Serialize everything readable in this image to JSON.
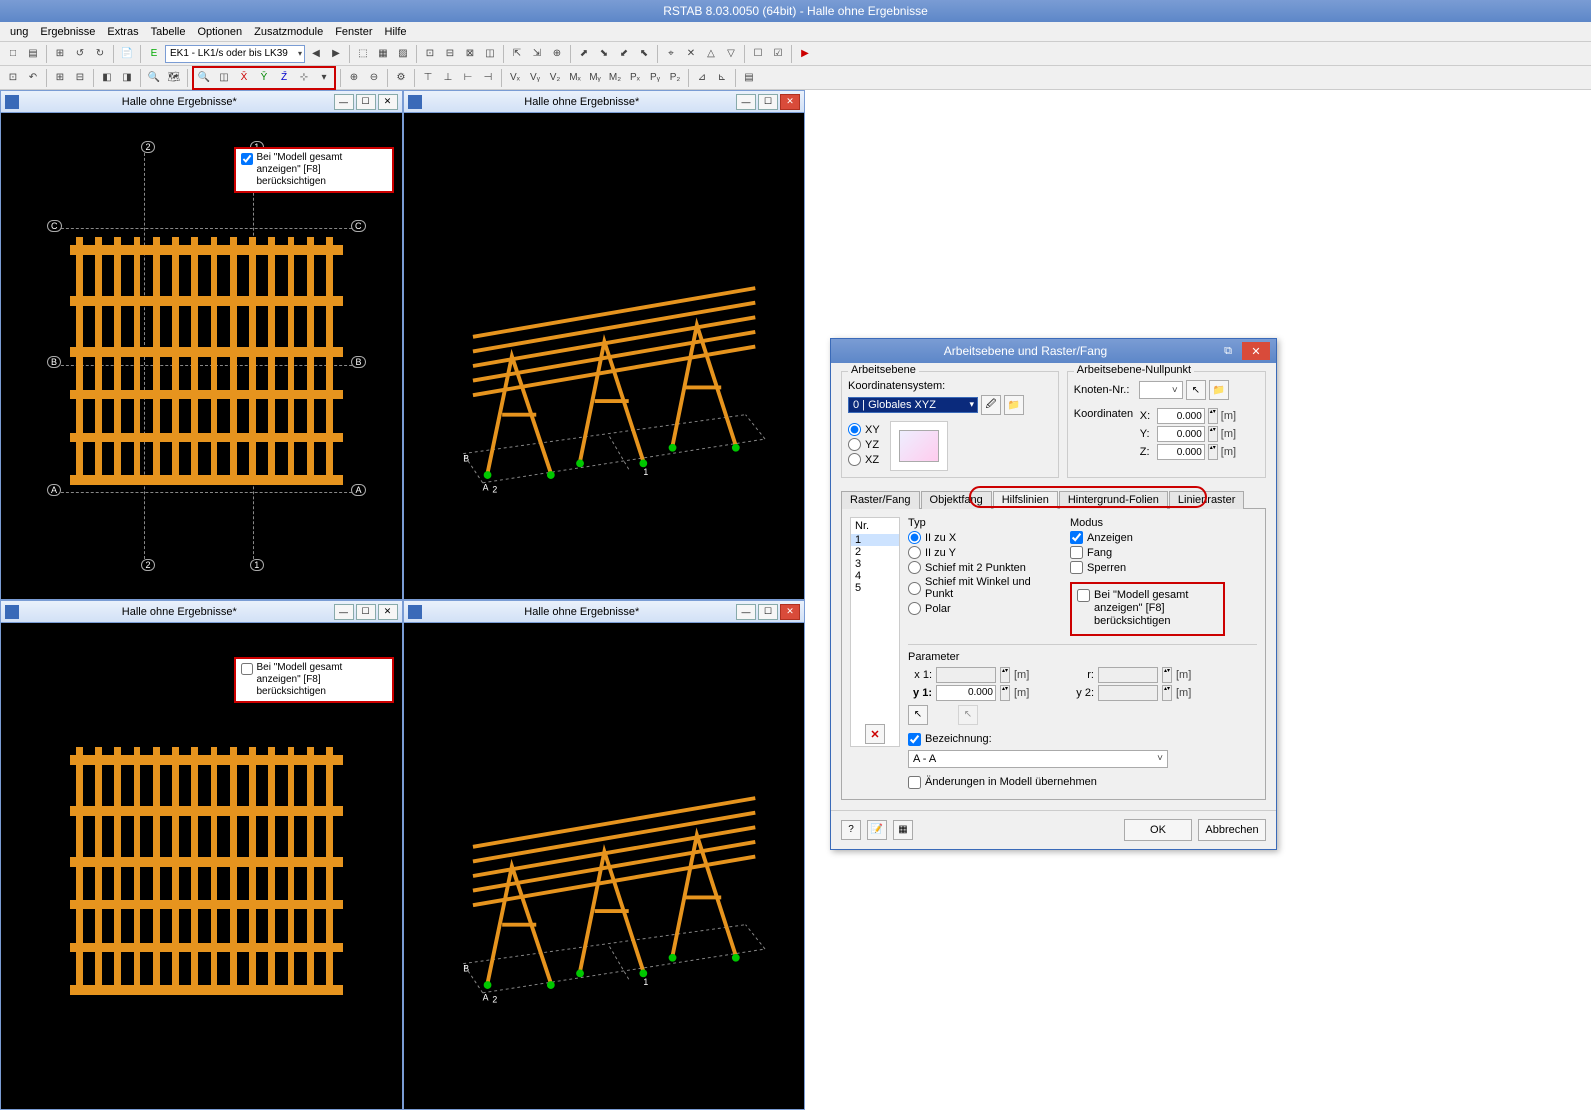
{
  "app": {
    "title": "RSTAB 8.03.0050 (64bit) - Halle ohne Ergebnisse",
    "title_color": "#7a9cd4",
    "accent_blue": "#3a6ab8"
  },
  "menu": {
    "items": [
      "ung",
      "Ergebnisse",
      "Extras",
      "Tabelle",
      "Optionen",
      "Zusatzmodule",
      "Fenster",
      "Hilfe"
    ]
  },
  "toolbar": {
    "combo_label": "EK1 - LK1/s oder bis LK39"
  },
  "child_windows": {
    "title": "Halle ohne Ergebnisse*",
    "callout_text": "Bei \"Modell gesamt anzeigen\" [F8] berücksichtigen",
    "callout_checked_top": true,
    "callout_checked_bottom": false,
    "beam_color": "#e6941e",
    "support_color": "#00c800",
    "viewport_bg": "#000000",
    "axis_labels_v": [
      "2",
      "1"
    ],
    "axis_labels_h": [
      "C",
      "B",
      "A"
    ]
  },
  "dialog": {
    "title": "Arbeitsebene und Raster/Fang",
    "group_workplane": "Arbeitsebene",
    "group_origin": "Arbeitsebene-Nullpunkt",
    "label_coordsys": "Koordinatensystem:",
    "coordsys_value": "0 | Globales XYZ",
    "plane_options": [
      "XY",
      "YZ",
      "XZ"
    ],
    "plane_selected": "XY",
    "label_node": "Knoten-Nr.:",
    "label_coords": "Koordinaten",
    "axis_labels": [
      "X:",
      "Y:",
      "Z:"
    ],
    "axis_values": [
      "0.000",
      "0.000",
      "0.000"
    ],
    "unit": "[m]",
    "tabs": [
      "Raster/Fang",
      "Objektfang",
      "Hilfslinien",
      "Hintergrund-Folien",
      "Linienraster"
    ],
    "tab_active": "Hilfslinien",
    "nr_header": "Nr.",
    "nr_items": [
      "1",
      "2",
      "3",
      "4",
      "5"
    ],
    "typ_label": "Typ",
    "typ_options": [
      {
        "label": "II zu X",
        "sel": true
      },
      {
        "label": "II zu Y",
        "sel": false
      },
      {
        "label": "Schief mit 2 Punkten",
        "sel": false
      },
      {
        "label": "Schief mit Winkel und Punkt",
        "sel": false
      },
      {
        "label": "Polar",
        "sel": false
      }
    ],
    "modus_label": "Modus",
    "modus_options": [
      {
        "label": "Anzeigen",
        "checked": true
      },
      {
        "label": "Fang",
        "checked": false
      },
      {
        "label": "Sperren",
        "checked": false
      }
    ],
    "modus_callout": "Bei \"Modell gesamt anzeigen\" [F8] berücksichtigen",
    "modus_callout_checked": false,
    "param_label": "Parameter",
    "param_x1": "x 1:",
    "param_y1": "y 1:",
    "param_r": "r:",
    "param_y2": "y 2:",
    "param_y1_val": "0.000",
    "bez_label": "Bezeichnung:",
    "bez_value": "A - A",
    "apply_label": "Änderungen in Modell übernehmen",
    "btn_ok": "OK",
    "btn_cancel": "Abbrechen",
    "red_highlight": "#c00"
  },
  "colors": {
    "red_highlight": "#c00",
    "close_btn": "#d94b3a"
  }
}
